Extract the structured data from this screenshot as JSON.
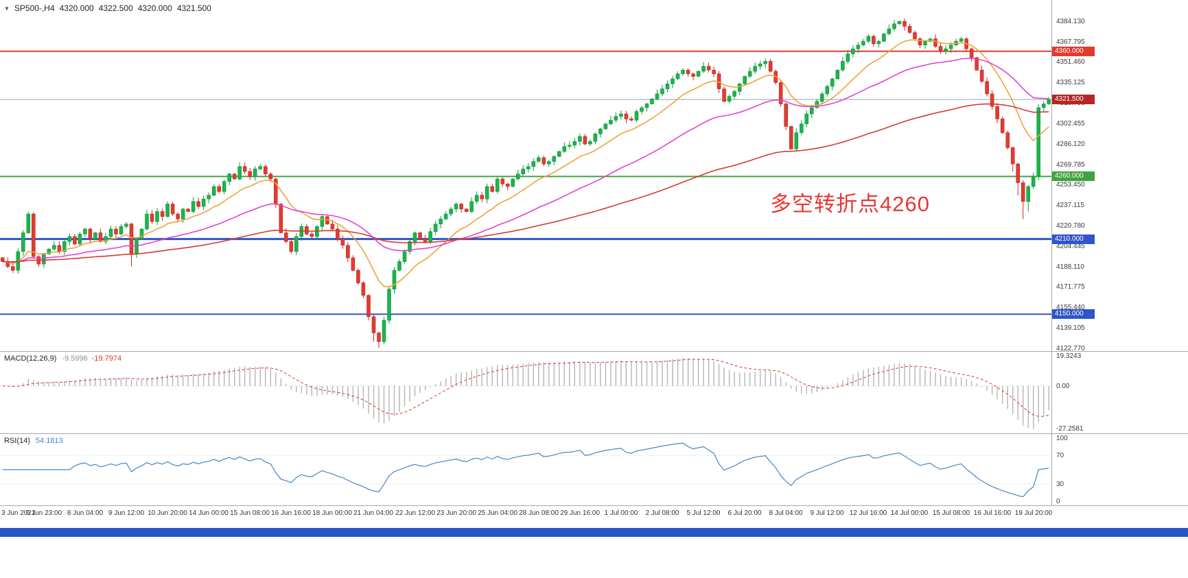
{
  "header": {
    "dropdown_icon": "▼",
    "symbol_period": "SP500-,H4",
    "open": "4320.000",
    "high": "4322.500",
    "low": "4320.000",
    "close": "4321.500"
  },
  "indicator_labels": {
    "macd_name": "MACD(12,26,9)",
    "macd_main": "-9.5996",
    "macd_signal": "-19.7974",
    "rsi_name": "RSI(14)",
    "rsi_value": "54.1813"
  },
  "axes": {
    "price_ticks": [
      4384.13,
      4367.795,
      4351.46,
      4335.125,
      4318.79,
      4302.455,
      4286.12,
      4269.785,
      4253.45,
      4237.115,
      4220.78,
      4204.445,
      4188.11,
      4171.775,
      4155.44,
      4139.105,
      4122.77
    ],
    "macd_ticks": [
      {
        "v": 19.3243,
        "label": "19.3243"
      },
      {
        "v": 0,
        "label": "0.00"
      },
      {
        "v": -27.2581,
        "label": "-27.2581"
      }
    ],
    "rsi_ticks": [
      {
        "v": 100,
        "label": "100"
      },
      {
        "v": 70,
        "label": "70"
      },
      {
        "v": 30,
        "label": "30"
      },
      {
        "v": 0,
        "label": "0"
      }
    ]
  },
  "chart_data": {
    "type": "candlestick",
    "symbol": "SP500-",
    "timeframe": "H4",
    "current_bar": {
      "open": 4320.0,
      "high": 4322.5,
      "low": 4320.0,
      "close": 4321.5
    },
    "y_range": [
      4120.5,
      4401.0
    ],
    "first_open": 4195,
    "closes": [
      4192,
      4188,
      4185,
      4200,
      4215,
      4230,
      4196,
      4190,
      4198,
      4202,
      4205,
      4200,
      4208,
      4212,
      4206,
      4214,
      4218,
      4210,
      4215,
      4208,
      4212,
      4218,
      4214,
      4220,
      4222,
      4198,
      4210,
      4218,
      4230,
      4224,
      4232,
      4228,
      4238,
      4230,
      4226,
      4234,
      4232,
      4240,
      4236,
      4242,
      4245,
      4252,
      4248,
      4256,
      4262,
      4258,
      4268,
      4264,
      4260,
      4266,
      4268,
      4262,
      4258,
      4238,
      4215,
      4208,
      4200,
      4212,
      4220,
      4214,
      4212,
      4220,
      4228,
      4222,
      4218,
      4210,
      4205,
      4195,
      4185,
      4175,
      4165,
      4148,
      4135,
      4128,
      4145,
      4170,
      4185,
      4192,
      4200,
      4208,
      4215,
      4210,
      4208,
      4216,
      4222,
      4226,
      4230,
      4234,
      4238,
      4234,
      4232,
      4240,
      4245,
      4242,
      4252,
      4248,
      4258,
      4254,
      4252,
      4258,
      4262,
      4266,
      4268,
      4272,
      4275,
      4270,
      4272,
      4276,
      4280,
      4284,
      4285,
      4288,
      4292,
      4286,
      4288,
      4294,
      4298,
      4302,
      4305,
      4308,
      4310,
      4306,
      4305,
      4312,
      4315,
      4318,
      4322,
      4326,
      4330,
      4334,
      4338,
      4342,
      4345,
      4342,
      4340,
      4344,
      4348,
      4345,
      4342,
      4330,
      4320,
      4324,
      4328,
      4334,
      4340,
      4344,
      4348,
      4350,
      4352,
      4344,
      4335,
      4318,
      4300,
      4282,
      4295,
      4302,
      4310,
      4315,
      4320,
      4326,
      4332,
      4338,
      4345,
      4352,
      4358,
      4362,
      4365,
      4368,
      4372,
      4366,
      4368,
      4374,
      4378,
      4382,
      4384,
      4380,
      4375,
      4370,
      4365,
      4368,
      4370,
      4364,
      4360,
      4362,
      4365,
      4368,
      4370,
      4362,
      4355,
      4345,
      4336,
      4326,
      4316,
      4306,
      4295,
      4283,
      4270,
      4255,
      4240,
      4252,
      4260,
      4315,
      4318,
      4321.5
    ],
    "wick_overrides": {
      "25": [
        1,
        10
      ],
      "72": [
        1.5,
        7
      ],
      "73": [
        1,
        5
      ],
      "174": [
        0.13,
        1
      ],
      "196": [
        1,
        6
      ],
      "197": [
        1,
        10
      ],
      "198": [
        2,
        14
      ],
      "199": [
        1,
        8
      ]
    },
    "colors": {
      "up": "#1eb24d",
      "up_stroke": "#0f9a3c",
      "down": "#e13b31",
      "down_stroke": "#c02a21"
    },
    "moving_averages": [
      {
        "type": "ema",
        "period": 13,
        "color": "#efa23b"
      },
      {
        "type": "ema",
        "period": 40,
        "color": "#e043cf"
      },
      {
        "type": "ema",
        "period": 110,
        "color": "#d63a2f"
      }
    ],
    "levels": [
      {
        "price": 4360.0,
        "color": "#e23a2e",
        "thickness": 2
      },
      {
        "price": 4260.0,
        "color": "#3fa33f",
        "thickness": 2
      },
      {
        "price": 4210.0,
        "color": "#2f55c8",
        "thickness": 3
      },
      {
        "price": 4150.0,
        "color": "#2f55c8",
        "thickness": 2
      }
    ],
    "current_price": {
      "value": 4321.5,
      "line_color": "#8aa5bd",
      "tag_bg": "#b32724"
    },
    "annotation": {
      "text": "多空转折点4260",
      "color": "#e53935"
    },
    "x_labels": [
      "3 Jun 2021",
      "6 Jun 23:00",
      "8 Jun 04:00",
      "9 Jun 12:00",
      "10 Jun 20:00",
      "14 Jun 00:00",
      "15 Jun 08:00",
      "16 Jun 16:00",
      "18 Jun 00:00",
      "21 Jun 04:00",
      "22 Jun 12:00",
      "23 Jun 20:00",
      "25 Jun 04:00",
      "28 Jun 08:00",
      "29 Jun 16:00",
      "1 Jul 00:00",
      "2 Jul 08:00",
      "5 Jul 12:00",
      "6 Jul 20:00",
      "8 Jul 04:00",
      "9 Jul 12:00",
      "12 Jul 16:00",
      "14 Jul 00:00",
      "15 Jul 08:00",
      "16 Jul 16:00",
      "19 Jul 20:00"
    ],
    "bars_per_label": 8,
    "indicators": {
      "macd": {
        "fast": 12,
        "slow": 26,
        "signal": 9,
        "main_value": -9.5996,
        "signal_value": -19.7974,
        "range": [
          -30.5,
          22
        ],
        "histogram_color": "#b4b4b4",
        "signal_color": "#d23b2f"
      },
      "rsi": {
        "period": 14,
        "value": 54.1813,
        "range": [
          0,
          100
        ],
        "levels": [
          70,
          30
        ],
        "line_color": "#3f86c9"
      }
    }
  },
  "taskbar": {
    "color": "#2456c4"
  }
}
